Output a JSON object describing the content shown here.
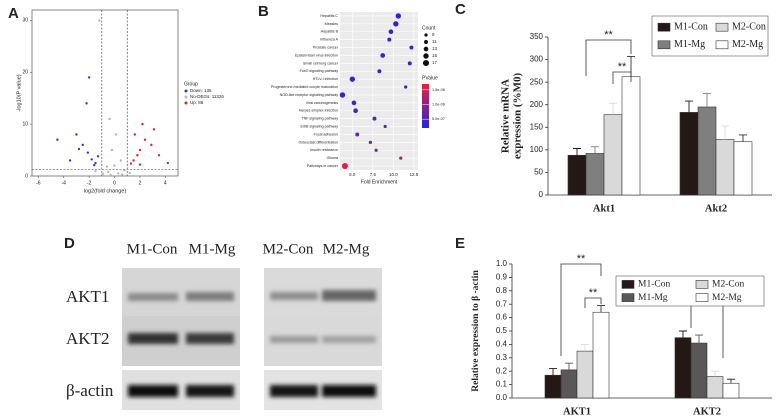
{
  "chart_data": [
    {
      "type": "scatter",
      "panel": "A",
      "xlabel": "log2(fold change)",
      "ylabel": "-log10(P value)",
      "xlim": [
        -6.5,
        5
      ],
      "xticks": [
        -6,
        -4,
        -2,
        0,
        2,
        4
      ],
      "ylim": [
        0,
        32
      ],
      "yticks": [
        0,
        10,
        20,
        30
      ],
      "vlines": [
        -1,
        1
      ],
      "hline": 1.3,
      "legend_title": "Group",
      "series": [
        {
          "name": "Down: 136",
          "color": "#2b3fc9",
          "x": [
            -2.1,
            -1.8,
            -2.5,
            -1.5,
            -3,
            -2.2,
            -1.3,
            -2.8,
            -4.5,
            -2,
            -1.6,
            -3.5
          ],
          "values": [
            4.5,
            3.2,
            6,
            2.5,
            8,
            14,
            3.8,
            5.2,
            7,
            19,
            2.1,
            3
          ]
        },
        {
          "name": "No-DEGs: 11326",
          "color": "#b8b8b8",
          "x": [
            0.3,
            -0.5,
            0.8,
            -0.9,
            0,
            -0.2,
            0.5,
            -0.6,
            1.2,
            -1.5,
            0.1,
            -0.4,
            -0.3,
            0.6,
            -1.2
          ],
          "values": [
            0.5,
            0.8,
            1.1,
            0.4,
            2,
            5,
            3,
            1.8,
            0.6,
            0.9,
            8,
            11,
            0.2,
            0.3,
            30
          ]
        },
        {
          "name": "Up: 86",
          "color": "#d42a2a",
          "x": [
            1.5,
            2,
            1.8,
            2.4,
            1.3,
            2.9,
            3.5,
            2.2,
            1.6,
            4.2,
            2,
            3.1
          ],
          "values": [
            3,
            5,
            4,
            7,
            2.4,
            6,
            4,
            10,
            8,
            2.5,
            2.2,
            9
          ]
        }
      ]
    },
    {
      "type": "dot",
      "panel": "B",
      "xlabel": "Fold Enrichment",
      "categories": [
        "Hepatitis C",
        "Measles",
        "Hepatitis B",
        "Influenza A",
        "Prostate cancer",
        "Epstein-Barr virus infection",
        "Small cell lung cancer",
        "FoxO signaling pathway",
        "HTLV-I infection",
        "Progesterone-mediated oocyte maturation",
        "NOD-like receptor signaling pathway",
        "Viral carcinogenesis",
        "Herpes simplex infection",
        "TNF signaling pathway",
        "ErbB signaling pathway",
        "Focal adhesion",
        "Osteoclast differentiation",
        "Insulin resistance",
        "Glioma",
        "Pathways in cancer"
      ],
      "values": [
        10.6,
        10.3,
        9.7,
        9.5,
        12.2,
        8.7,
        12.0,
        8.3,
        5.0,
        11.5,
        3.8,
        5.2,
        5.4,
        7.7,
        9.0,
        5.6,
        7.2,
        7.9,
        10.9,
        4.1
      ],
      "counts": [
        15,
        15,
        13,
        11,
        11,
        13,
        11,
        11,
        15,
        9,
        15,
        13,
        13,
        11,
        9,
        11,
        9,
        9,
        9,
        17
      ],
      "pvalues": [
        3e-07,
        3e-07,
        3e-07,
        3e-07,
        3e-07,
        3e-07,
        3e-07,
        3e-07,
        3e-07,
        4e-07,
        3e-07,
        4e-07,
        4e-07,
        5e-07,
        6e-07,
        8e-07,
        8e-07,
        9e-07,
        1.2e-06,
        1.6e-06
      ],
      "xlim": [
        3.5,
        13
      ],
      "xticks": [
        {
          "value": 5,
          "label": "5.0"
        },
        7.5,
        {
          "value": 10,
          "label": "10.0"
        },
        12.5
      ],
      "count_title": "Count",
      "count_ticks": [
        9,
        11,
        13,
        15,
        17
      ],
      "pvalue_title": "PValue",
      "pvalue_lim": [
        2e-07,
        1.7e-06
      ],
      "pvalue_ticks": [
        {
          "value": 1.5e-06,
          "label": "1.5e-06"
        },
        {
          "value": 1e-06,
          "label": "1.0e-06"
        },
        {
          "value": 5e-07,
          "label": "5.0e-07"
        }
      ]
    },
    {
      "type": "bar",
      "panel": "C",
      "ylabel": [
        "Relative mRNA",
        "expression (%M0)"
      ],
      "categories": [
        "Akt1",
        "Akt2"
      ],
      "ylim": [
        0,
        350
      ],
      "yticks": [
        0,
        50,
        100,
        150,
        200,
        250,
        300,
        350
      ],
      "annotations": [
        "**",
        "**"
      ],
      "series": [
        {
          "name": "M1-Con",
          "color": "#231815",
          "values": [
            88,
            183
          ],
          "errors": [
            15,
            25
          ]
        },
        {
          "name": "M1-Mg",
          "color": "#7f7f7f",
          "values": [
            92,
            195
          ],
          "errors": [
            15,
            30
          ]
        },
        {
          "name": "M2-Con",
          "color": "#d9d9d9",
          "values": [
            178,
            123
          ],
          "errors": [
            25,
            30
          ]
        },
        {
          "name": "M2-Mg",
          "color": "#ffffff",
          "values": [
            262,
            118
          ],
          "errors": [
            45,
            15
          ]
        }
      ]
    },
    {
      "type": "bar",
      "panel": "E",
      "ylabel": [
        "Relative expression to β -actin"
      ],
      "categories": [
        "AKT1",
        "AKT2"
      ],
      "ylim": [
        0,
        1
      ],
      "yticks": [
        {
          "value": 0,
          "label": "0.0"
        },
        0.1,
        0.2,
        0.3,
        0.4,
        0.5,
        0.6,
        0.7,
        0.8,
        0.9,
        {
          "value": 1,
          "label": "1.0"
        }
      ],
      "annotations": [
        "**",
        "**",
        "**"
      ],
      "series": [
        {
          "name": "M1-Con",
          "color": "#231815",
          "values": [
            0.17,
            0.45
          ],
          "errors": [
            0.05,
            0.05
          ]
        },
        {
          "name": "M1-Mg",
          "color": "#595757",
          "values": [
            0.21,
            0.41
          ],
          "errors": [
            0.05,
            0.06
          ]
        },
        {
          "name": "M2-Con",
          "color": "#d9d9d9",
          "values": [
            0.35,
            0.16
          ],
          "errors": [
            0.05,
            0.04
          ]
        },
        {
          "name": "M2-Mg",
          "color": "#ffffff",
          "values": [
            0.64,
            0.11
          ],
          "errors": [
            0.05,
            0.03
          ]
        }
      ]
    }
  ],
  "blot": {
    "panel": "D",
    "lanes": [
      "M1-Con",
      "M1-Mg",
      "M2-Con",
      "M2-Mg"
    ],
    "rows": [
      "AKT1",
      "AKT2",
      "β-actin"
    ]
  }
}
